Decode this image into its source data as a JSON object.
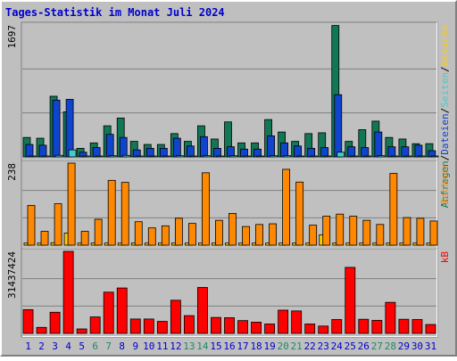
{
  "chart_data": {
    "type": "bar",
    "title": "Tages-Statistik im Monat Juli 2024",
    "x": [
      "1",
      "2",
      "3",
      "4",
      "5",
      "6",
      "7",
      "8",
      "9",
      "10",
      "11",
      "12",
      "13",
      "14",
      "15",
      "16",
      "17",
      "18",
      "19",
      "20",
      "21",
      "22",
      "23",
      "24",
      "25",
      "26",
      "27",
      "28",
      "29",
      "30",
      "31"
    ],
    "weekend_days": [
      6,
      7,
      13,
      14,
      20,
      21,
      27,
      28
    ],
    "colors": {
      "title": "#0000cc",
      "weekend": "#228866",
      "weekday": "#0000cc",
      "anfragen": "#117755",
      "dateien": "#1144cc",
      "seiten": "#44cccc",
      "besuche": "#ffcc00",
      "rechner": "#ff8800",
      "kb": "#ff0000",
      "grid": "#808080",
      "panel_bg": "#c0c0c0"
    },
    "panels": [
      {
        "max_label": "1697",
        "ylim": [
          0,
          1697
        ],
        "right_labels": [
          {
            "text": "Anfragen",
            "color": "#117755"
          },
          {
            "text": "/",
            "color": "#000000"
          },
          {
            "text": "Dateien",
            "color": "#1144cc"
          },
          {
            "text": "/",
            "color": "#000000"
          },
          {
            "text": "Seiten",
            "color": "#44cccc"
          },
          {
            "text": "/",
            "color": "#000000"
          },
          {
            "text": "Besuche",
            "color": "#ffcc00"
          }
        ],
        "series": [
          {
            "name": "Anfragen",
            "values": [
              250,
              240,
              780,
              580,
              110,
              180,
              400,
              500,
              200,
              160,
              160,
              300,
              200,
              400,
              230,
              450,
              180,
              180,
              480,
              320,
              200,
              300,
              310,
              1690,
              200,
              350,
              460,
              250,
              230,
              170,
              170
            ]
          },
          {
            "name": "Dateien",
            "values": [
              160,
              150,
              730,
              740,
              60,
              120,
              290,
              250,
              90,
              110,
              110,
              240,
              140,
              260,
              110,
              130,
              100,
              100,
              270,
              180,
              140,
              110,
              120,
              800,
              130,
              120,
              320,
              130,
              130,
              150,
              80
            ]
          },
          {
            "name": "Seiten",
            "values": [
              10,
              10,
              20,
              90,
              10,
              10,
              15,
              20,
              10,
              10,
              10,
              15,
              10,
              15,
              10,
              15,
              10,
              10,
              15,
              15,
              10,
              10,
              10,
              60,
              10,
              10,
              15,
              10,
              10,
              10,
              10
            ]
          }
        ]
      },
      {
        "max_label": "238",
        "ylim": [
          0,
          238
        ],
        "right_labels": [
          {
            "text": "Rechner",
            "color": "#ff8800"
          }
        ],
        "series": [
          {
            "name": "Besuche",
            "values": [
              6,
              6,
              7,
              35,
              6,
              6,
              6,
              6,
              6,
              6,
              6,
              6,
              6,
              6,
              6,
              6,
              6,
              6,
              6,
              6,
              6,
              6,
              30,
              6,
              6,
              6,
              6,
              6,
              6,
              6,
              6
            ]
          },
          {
            "name": "Rechner",
            "values": [
              115,
              40,
              120,
              238,
              40,
              75,
              188,
              182,
              68,
              50,
              56,
              78,
              63,
              210,
              72,
              92,
              54,
              60,
              62,
              220,
              183,
              58,
              84,
              90,
              84,
              72,
              60,
              208,
              80,
              78,
              70
            ]
          }
        ]
      },
      {
        "max_label": "31437424",
        "ylim": [
          0,
          31437424
        ],
        "right_labels": [
          {
            "text": "kB",
            "color": "#ff0000"
          }
        ],
        "series": [
          {
            "name": "kB",
            "values": [
              9100000,
              2300000,
              8100000,
              31437424,
              1700000,
              6300000,
              15800000,
              17400000,
              5500000,
              5500000,
              4600000,
              12700000,
              6800000,
              17600000,
              6100000,
              6000000,
              4900000,
              4300000,
              3600000,
              8900000,
              8600000,
              3600000,
              2800000,
              5300000,
              25300000,
              5400000,
              5000000,
              11900000,
              5400000,
              5300000,
              3400000
            ]
          }
        ]
      }
    ]
  }
}
